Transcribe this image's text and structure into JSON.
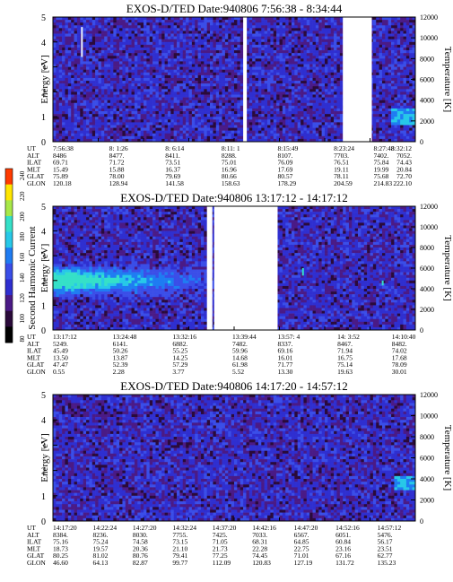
{
  "palette": [
    "#000000",
    "#2a0a3a",
    "#4a1a86",
    "#2f2fd0",
    "#3a4ee8",
    "#1f7cf2",
    "#27c8e8",
    "#35e0c8",
    "#a8e848",
    "#ffe600",
    "#ff3b00"
  ],
  "colorbar": {
    "label": "Second Harmonic Current",
    "ticks": [
      "240",
      "220",
      "200",
      "180",
      "160",
      "140",
      "120",
      "100",
      "80"
    ]
  },
  "chart_data": [
    {
      "type": "heatmap",
      "title": "EXOS-D/TED   Date:940806  7:56:38 - 8:34:44",
      "ylabel": "Energy [eV]",
      "y2label": "Temperature [K]",
      "ylim": [
        0,
        5
      ],
      "yticks": [
        "5",
        "4",
        "3",
        "2",
        "1",
        "0"
      ],
      "y2lim": [
        0,
        12000
      ],
      "y2ticks": [
        "12000",
        "10000",
        "8000",
        "6000",
        "4000",
        "2000",
        "0"
      ],
      "data_gaps": [
        [
          0.525,
          0.535
        ],
        [
          0.8,
          0.88
        ]
      ],
      "features": [
        {
          "kind": "streak",
          "x": 0.08,
          "y": [
            3.4,
            4.6
          ]
        },
        {
          "kind": "blob",
          "x": 0.97,
          "y": [
            0.7,
            1.3
          ]
        }
      ],
      "table": {
        "row_labels": [
          "UT",
          "ALT",
          "ILAT",
          "MLT",
          "GLAT",
          "GLON"
        ],
        "columns": [
          {
            "x": 0.0,
            "values": [
              "7:56:38",
              "8486",
              "69.71",
              "15.49",
              "75.89",
              "120.18"
            ]
          },
          {
            "x": 0.155,
            "values": [
              "8: 1:26",
              "8477.",
              "71.72",
              "15.88",
              "78.00",
              "128.94"
            ]
          },
          {
            "x": 0.31,
            "values": [
              "8: 6:14",
              "8411.",
              "73.51",
              "16.37",
              "79.69",
              "141.58"
            ]
          },
          {
            "x": 0.465,
            "values": [
              "8:11: 1",
              "8288.",
              "75.01",
              "16.96",
              "80.66",
              "158.63"
            ]
          },
          {
            "x": 0.62,
            "values": [
              "8:15:49",
              "8107.",
              "76.09",
              "17.69",
              "80.57",
              "178.29"
            ]
          },
          {
            "x": 0.775,
            "values": [
              "8:23:24",
              "7703.",
              "76.51",
              "19.11",
              "78.11",
              "204.59"
            ]
          },
          {
            "x": 0.885,
            "values": [
              "8:27:48",
              "7402.",
              "75.84",
              "19.99",
              "75.68",
              "214.83"
            ]
          },
          {
            "x": 0.99,
            "values": [
              "8:32:12",
              "7052.",
              "74.43",
              "20.84",
              "72.70",
              "222.10"
            ]
          }
        ]
      }
    },
    {
      "type": "heatmap",
      "title": "EXOS-D/TED   Date:940806  13:17:12 - 14:17:12",
      "ylabel": "Energy [eV]",
      "y2label": "Temperature [K]",
      "ylim": [
        0,
        5
      ],
      "yticks": [
        "5",
        "4",
        "3",
        "2",
        "1",
        "0"
      ],
      "y2lim": [
        0,
        12000
      ],
      "y2ticks": [
        "12000",
        "10000",
        "8000",
        "6000",
        "4000",
        "2000",
        "0"
      ],
      "data_gaps": [
        [
          0.425,
          0.44
        ],
        [
          0.445,
          0.62
        ]
      ],
      "features": [
        {
          "kind": "hot_core",
          "x": [
            0.0,
            0.45
          ],
          "y": [
            1.2,
            2.7
          ],
          "peak_energy": 2.0
        },
        {
          "kind": "streak",
          "x": 0.69,
          "y": [
            2.2,
            2.5
          ]
        },
        {
          "kind": "streak",
          "x": 0.91,
          "y": [
            1.8,
            2.0
          ]
        }
      ],
      "table": {
        "row_labels": [
          "UT",
          "ALT",
          "ILAT",
          "MLT",
          "GLAT",
          "GLON"
        ],
        "columns": [
          {
            "x": 0.0,
            "values": [
              "13:17:12",
              "5249.",
              "45.49",
              "13.50",
              "47.47",
              "0.55"
            ]
          },
          {
            "x": 0.165,
            "values": [
              "13:24:48",
              "6141.",
              "50.26",
              "13.87",
              "52.39",
              "2.28"
            ]
          },
          {
            "x": 0.33,
            "values": [
              "13:32:16",
              "6882.",
              "55.25",
              "14.25",
              "57.29",
              "3.77"
            ]
          },
          {
            "x": 0.495,
            "values": [
              "13:39:44",
              "7482.",
              "59.96",
              "14.68",
              "61.98",
              "5.52"
            ]
          },
          {
            "x": 0.62,
            "values": [
              "13:57: 4",
              "8337.",
              "69.16",
              "16.01",
              "71.77",
              "13.30"
            ]
          },
          {
            "x": 0.785,
            "values": [
              "14: 3:52",
              "8467.",
              "71.94",
              "16.75",
              "75.14",
              "19.63"
            ]
          },
          {
            "x": 0.935,
            "values": [
              "14:10:40",
              "8482.",
              "74.02",
              "17.68",
              "78.09",
              "30.01"
            ]
          }
        ]
      }
    },
    {
      "type": "heatmap",
      "title": "EXOS-D/TED   Date:940806  14:17:20 - 14:57:12",
      "ylabel": "Energy [eV]",
      "y2label": "Temperature [K]",
      "ylim": [
        0,
        5
      ],
      "yticks": [
        "5",
        "4",
        "3",
        "2",
        "1",
        "0"
      ],
      "y2lim": [
        0,
        12000
      ],
      "y2ticks": [
        "12000",
        "10000",
        "8000",
        "6000",
        "4000",
        "2000",
        "0"
      ],
      "data_gaps": [],
      "features": [
        {
          "kind": "blob",
          "x": 0.975,
          "y": [
            1.2,
            1.8
          ]
        }
      ],
      "table": {
        "row_labels": [
          "UT",
          "ALT",
          "ILAT",
          "MLT",
          "GLAT",
          "GLON"
        ],
        "columns": [
          {
            "x": 0.0,
            "values": [
              "14:17:20",
              "8384.",
              "75.16",
              "18.73",
              "80.25",
              "46.60"
            ]
          },
          {
            "x": 0.11,
            "values": [
              "14:22:24",
              "8236.",
              "75.24",
              "19.57",
              "81.02",
              "64.13"
            ]
          },
          {
            "x": 0.22,
            "values": [
              "14:27:20",
              "8030.",
              "74.58",
              "20.36",
              "80.76",
              "82.87"
            ]
          },
          {
            "x": 0.33,
            "values": [
              "14:32:24",
              "7755.",
              "73.15",
              "21.10",
              "79.41",
              "99.77"
            ]
          },
          {
            "x": 0.44,
            "values": [
              "14:37:20",
              "7425.",
              "71.05",
              "21.73",
              "77.25",
              "112.09"
            ]
          },
          {
            "x": 0.55,
            "values": [
              "14:42:16",
              "7033.",
              "68.31",
              "22.28",
              "74.45",
              "120.83"
            ]
          },
          {
            "x": 0.665,
            "values": [
              "14:47:20",
              "6567.",
              "64.85",
              "22.75",
              "71.01",
              "127.19"
            ]
          },
          {
            "x": 0.78,
            "values": [
              "14:52:16",
              "6051.",
              "60.84",
              "23.16",
              "67.16",
              "131.72"
            ]
          },
          {
            "x": 0.895,
            "values": [
              "14:57:12",
              "5476.",
              "56.17",
              "23.51",
              "62.77",
              "135.23"
            ]
          }
        ]
      }
    }
  ]
}
